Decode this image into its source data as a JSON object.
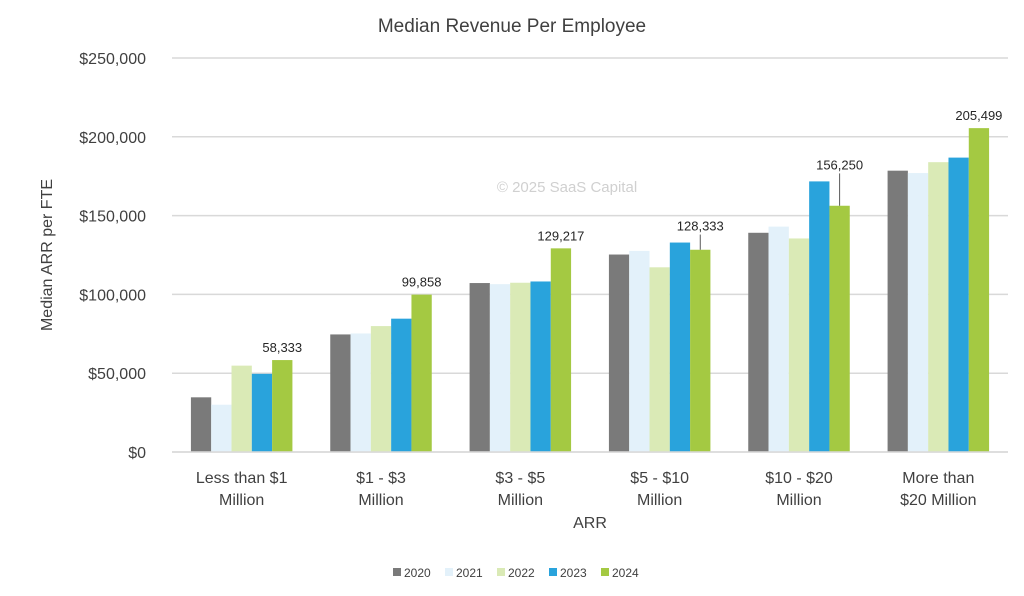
{
  "chart_data": {
    "type": "bar",
    "title": "Median Revenue Per Employee",
    "xlabel": "ARR",
    "ylabel": "Median ARR per FTE",
    "watermark": "© 2025 SaaS Capital",
    "ylim": [
      0,
      250000
    ],
    "yticks": [
      0,
      50000,
      100000,
      150000,
      200000,
      250000
    ],
    "ytick_labels": [
      "$0",
      "$50,000",
      "$100,000",
      "$150,000",
      "$200,000",
      "$250,000"
    ],
    "grid": true,
    "legend_position": "bottom",
    "categories": [
      [
        "Less than $1",
        "Million"
      ],
      [
        "$1 - $3",
        "Million"
      ],
      [
        "$3 - $5",
        "Million"
      ],
      [
        "$5 - $10",
        "Million"
      ],
      [
        "$10 - $20",
        "Million"
      ],
      [
        "More than",
        "$20 Million"
      ]
    ],
    "series": [
      {
        "name": "2020",
        "color": "#7a7a7a",
        "values": [
          34700,
          74600,
          107200,
          125300,
          139100,
          178500
        ]
      },
      {
        "name": "2021",
        "color": "#e3f1fa",
        "values": [
          30000,
          75200,
          106500,
          127600,
          143000,
          177000
        ]
      },
      {
        "name": "2022",
        "color": "#daeab6",
        "values": [
          54800,
          79900,
          107400,
          117200,
          135500,
          183900
        ]
      },
      {
        "name": "2023",
        "color": "#29a3dc",
        "values": [
          49600,
          84600,
          108200,
          132900,
          171700,
          186800
        ]
      },
      {
        "name": "2024",
        "color": "#a4c942",
        "values": [
          58333,
          99858,
          129217,
          128333,
          156250,
          205499
        ]
      }
    ],
    "data_labels": [
      "58,333",
      "99,858",
      "129,217",
      "128,333",
      "156,250",
      "205,499"
    ]
  }
}
